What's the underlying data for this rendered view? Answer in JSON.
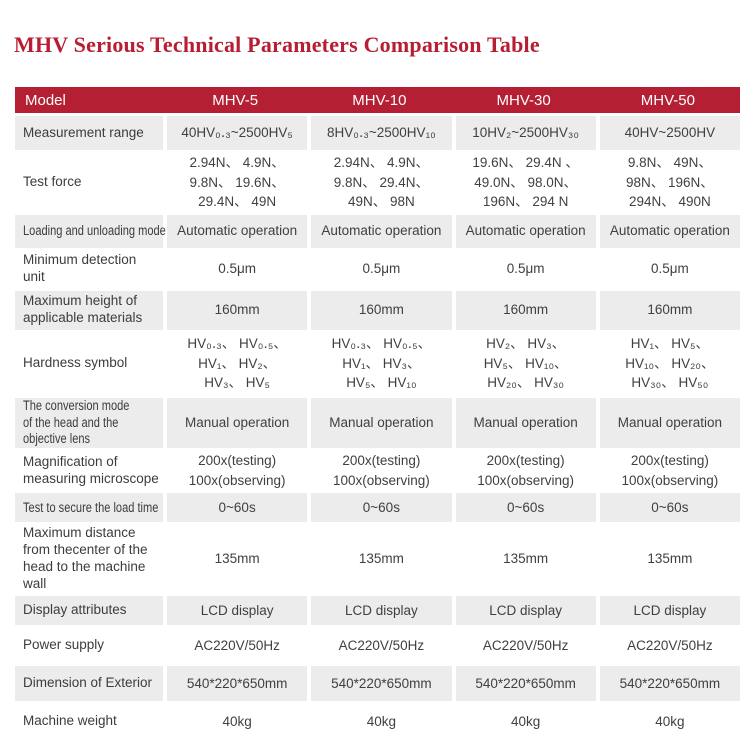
{
  "title": "MHV Serious Technical Parameters Comparison Table",
  "colors": {
    "title_red": "#b81e33",
    "header_bg": "#b41f33",
    "stripe_gray": "#ececec",
    "text": "#3f3f3f"
  },
  "table": {
    "header": [
      "Model",
      "MHV-5",
      "MHV-10",
      "MHV-30",
      "MHV-50"
    ],
    "rows": [
      {
        "label": "Measurement range",
        "values": [
          "40HV₀․₃~2500HV₅",
          "8HV₀․₃~2500HV₁₀",
          "10HV₂~2500HV₃₀",
          "40HV~2500HV"
        ]
      },
      {
        "label": "Test force",
        "values": [
          "2.94N、 4.9N、\n9.8N、 19.6N、\n29.4N、 49N",
          "2.94N、 4.9N、\n9.8N、 29.4N、\n49N、 98N",
          "19.6N、 29.4N 、\n49.0N、 98.0N、\n196N、 294 N",
          "9.8N、 49N、\n98N、 196N、\n294N、 490N"
        ]
      },
      {
        "label": "Loading and unloading mode",
        "values": [
          "Automatic operation",
          "Automatic operation",
          "Automatic operation",
          "Automatic operation"
        ]
      },
      {
        "label": "Minimum detection unit",
        "values": [
          "0.5μm",
          "0.5μm",
          "0.5μm",
          "0.5μm"
        ]
      },
      {
        "label": "Maximum height of applicable materials",
        "values": [
          "160mm",
          "160mm",
          "160mm",
          "160mm"
        ]
      },
      {
        "label": "Hardness symbol",
        "values": [
          "HV₀․₃、 HV₀․₅、\nHV₁、 HV₂、\nHV₃、 HV₅",
          "HV₀․₃、 HV₀․₅、\nHV₁、 HV₃、\nHV₅、 HV₁₀",
          "HV₂、 HV₃、\nHV₅、 HV₁₀、\nHV₂₀、 HV₃₀",
          "HV₁、 HV₅、\nHV₁₀、 HV₂₀、\nHV₃₀、 HV₅₀"
        ]
      },
      {
        "label": "The conversion mode of the head and the objective lens",
        "values": [
          "Manual operation",
          "Manual operation",
          "Manual operation",
          "Manual operation"
        ]
      },
      {
        "label": "Magnification of measuring microscope",
        "values": [
          "200x(testing)\n100x(observing)",
          "200x(testing)\n100x(observing)",
          "200x(testing)\n100x(observing)",
          "200x(testing)\n100x(observing)"
        ]
      },
      {
        "label": "Test to secure the load time",
        "values": [
          "0~60s",
          "0~60s",
          "0~60s",
          "0~60s"
        ]
      },
      {
        "label": "Maximum distance from thecenter of the head to the machine wall",
        "values": [
          "135mm",
          "135mm",
          "135mm",
          "135mm"
        ]
      },
      {
        "label": "Display attributes",
        "values": [
          "LCD display",
          "LCD display",
          "LCD display",
          "LCD display"
        ]
      },
      {
        "label": "Power supply",
        "values": [
          "AC220V/50Hz",
          "AC220V/50Hz",
          "AC220V/50Hz",
          "AC220V/50Hz"
        ]
      },
      {
        "label": "Dimension of Exterior",
        "values": [
          "540*220*650mm",
          "540*220*650mm",
          "540*220*650mm",
          "540*220*650mm"
        ]
      },
      {
        "label": "Machine weight",
        "values": [
          "40kg",
          "40kg",
          "40kg",
          "40kg"
        ]
      }
    ]
  }
}
